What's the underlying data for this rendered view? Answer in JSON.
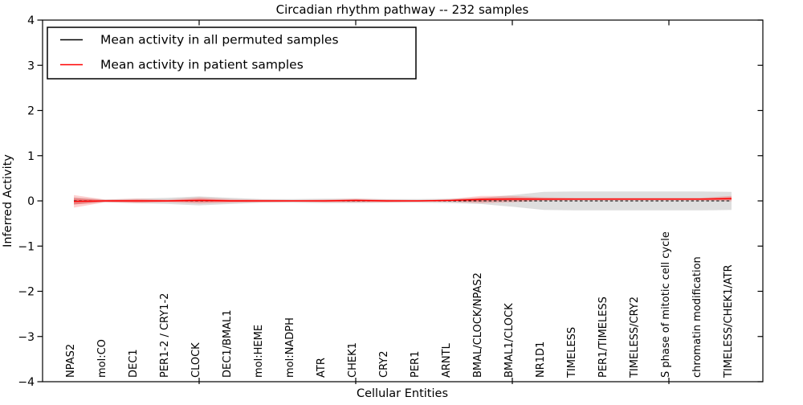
{
  "chart_data": {
    "type": "line",
    "title": "Circadian rhythm pathway -- 232 samples",
    "xlabel": "Cellular Entities",
    "ylabel": "Inferred Activity",
    "ylim": [
      -4,
      4
    ],
    "yticks": [
      -4,
      -3,
      -2,
      -1,
      0,
      1,
      2,
      3,
      4
    ],
    "x_major_tick_categories": [
      5,
      10,
      15,
      20
    ],
    "grid": false,
    "legend_position": "upper left",
    "background": "#ffffff",
    "categories": [
      "NPAS2",
      "mol:CO",
      "DEC1",
      "PER1-2 / CRY1-2",
      "CLOCK",
      "DEC1/BMAL1",
      "mol:HEME",
      "mol:NADPH",
      "ATR",
      "CHEK1",
      "CRY2",
      "PER1",
      "ARNTL",
      "BMAL/CLOCK/NPAS2",
      "BMAL1/CLOCK",
      "NR1D1",
      "TIMELESS",
      "PER1/TIMELESS",
      "TIMELESS/CRY2",
      "S phase of mitotic cell cycle",
      "chromatin modification",
      "TIMELESS/CHEK1/ATR"
    ],
    "series": [
      {
        "name": "Mean activity in all permuted samples",
        "color": "#000000",
        "line_style": "dashed",
        "band_color": "#000000",
        "band_opacity": 0.13,
        "means": [
          0,
          0,
          0,
          0,
          0,
          0,
          0,
          0,
          0,
          0,
          0,
          0,
          0,
          0,
          0,
          0,
          0,
          0,
          0,
          0,
          0,
          0
        ],
        "band_halfwidth": [
          0.08,
          0.03,
          0.05,
          0.07,
          0.1,
          0.07,
          0.04,
          0.04,
          0.05,
          0.05,
          0.04,
          0.04,
          0.05,
          0.07,
          0.13,
          0.2,
          0.21,
          0.21,
          0.21,
          0.21,
          0.21,
          0.2
        ]
      },
      {
        "name": "Mean activity in patient samples",
        "color": "#ff0000",
        "line_style": "solid",
        "band_color": "#ff0000",
        "band_opacity": 0.18,
        "means": [
          -0.01,
          0.0,
          0.0,
          0.0,
          0.01,
          0.0,
          0.0,
          0.0,
          0.0,
          0.01,
          0.0,
          0.0,
          0.01,
          0.03,
          0.04,
          0.04,
          0.04,
          0.04,
          0.04,
          0.04,
          0.04,
          0.05
        ],
        "band_halfwidth": [
          0.14,
          0.03,
          0.05,
          0.03,
          0.07,
          0.04,
          0.03,
          0.02,
          0.03,
          0.04,
          0.03,
          0.02,
          0.03,
          0.08,
          0.07,
          0.04,
          0.03,
          0.03,
          0.03,
          0.03,
          0.03,
          0.06
        ]
      }
    ]
  }
}
